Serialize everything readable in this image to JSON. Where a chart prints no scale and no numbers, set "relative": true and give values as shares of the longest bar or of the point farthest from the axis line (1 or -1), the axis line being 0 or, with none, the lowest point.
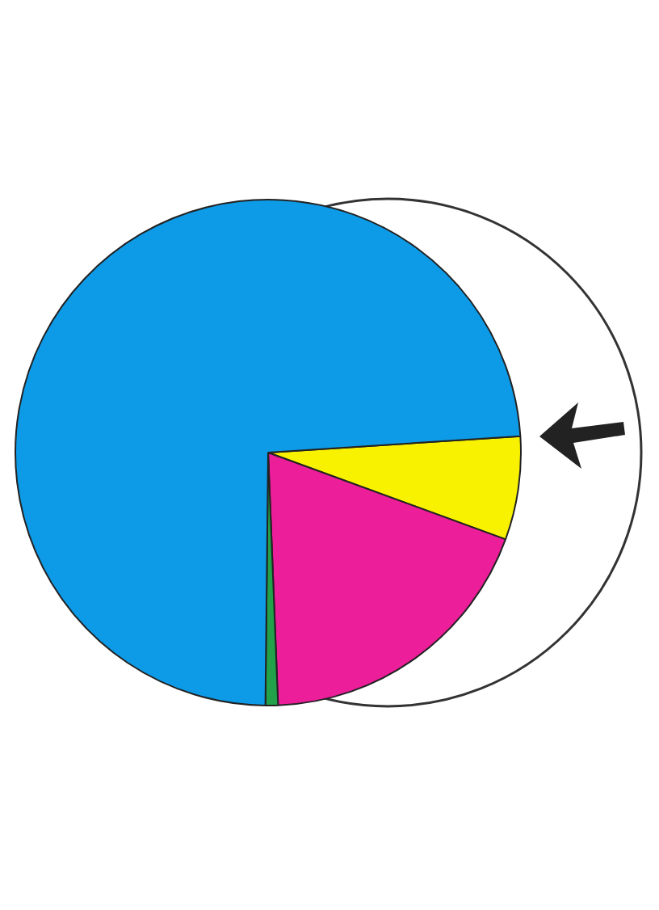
{
  "chart_data": {
    "type": "pie",
    "relative": true,
    "categories": [
      null,
      null,
      null,
      null
    ],
    "values": [
      6.6,
      18.8,
      0.8,
      73.8
    ],
    "colors": [
      "#f8f200",
      "#ec1e9a",
      "#22a04a",
      "#0d9be8"
    ],
    "legend": false
  }
}
